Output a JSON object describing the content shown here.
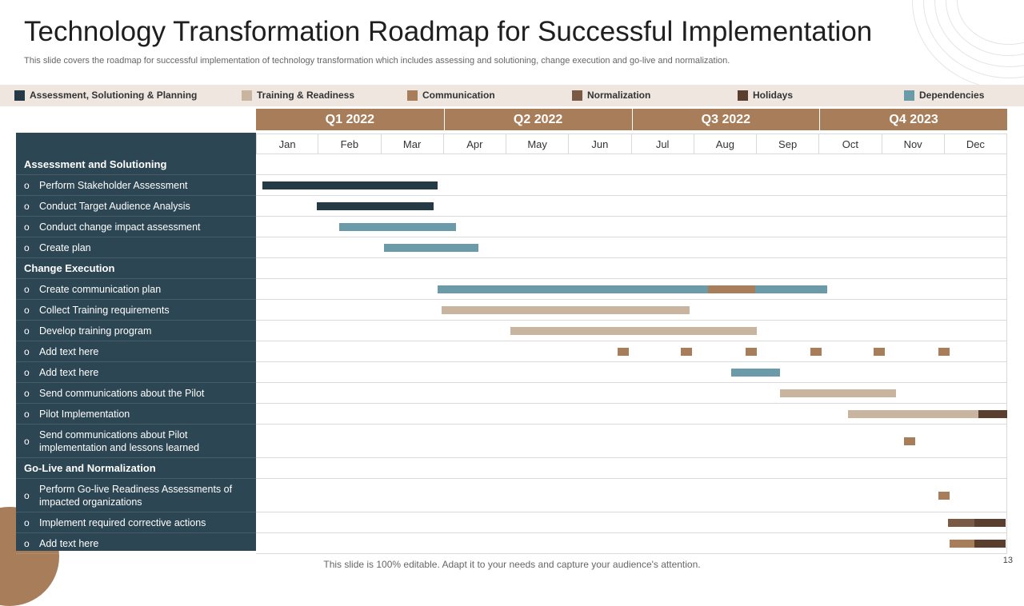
{
  "title": "Technology Transformation Roadmap for Successful Implementation",
  "subtitle": "This slide covers the roadmap for successful implementation of technology transformation which includes assessing and solutioning, change execution and go-live and normalization.",
  "colors": {
    "assessment": "#243a44",
    "training": "#c9b4a0",
    "communication": "#a87d5a",
    "normalization": "#7a5a44",
    "holidays": "#5b3f2e",
    "dependencies": "#6b9aa8"
  },
  "legend": [
    {
      "label": "Assessment, Solutioning  & Planning",
      "type": "assessment"
    },
    {
      "label": "Training & Readiness",
      "type": "training"
    },
    {
      "label": "Communication",
      "type": "communication"
    },
    {
      "label": "Normalization",
      "type": "normalization"
    },
    {
      "label": "Holidays",
      "type": "holidays"
    },
    {
      "label": "Dependencies",
      "type": "dependencies"
    }
  ],
  "quarters": [
    "Q1 2022",
    "Q2 2022",
    "Q3 2022",
    "Q4 2023"
  ],
  "months": [
    "Jan",
    "Feb",
    "Mar",
    "Apr",
    "May",
    "Jun",
    "Jul",
    "Aug",
    "Sep",
    "Oct",
    "Nov",
    "Dec"
  ],
  "rows": [
    {
      "kind": "section",
      "label": "Assessment and Solutioning",
      "bars": []
    },
    {
      "kind": "task",
      "label": "Perform Stakeholder Assessment",
      "bars": [
        {
          "start": 0.1,
          "end": 2.9,
          "type": "assessment"
        }
      ]
    },
    {
      "kind": "task",
      "label": "Conduct Target Audience Analysis",
      "bars": [
        {
          "start": 0.97,
          "end": 2.84,
          "type": "assessment"
        }
      ]
    },
    {
      "kind": "task",
      "label": "Conduct change impact assessment",
      "bars": [
        {
          "start": 1.33,
          "end": 3.2,
          "type": "dependencies"
        }
      ]
    },
    {
      "kind": "task",
      "label": "Create plan",
      "bars": [
        {
          "start": 2.04,
          "end": 3.55,
          "type": "dependencies"
        }
      ]
    },
    {
      "kind": "section",
      "label": "Change Execution",
      "bars": []
    },
    {
      "kind": "task",
      "label": "Create communication plan",
      "bars": [
        {
          "start": 2.9,
          "end": 7.22,
          "type": "dependencies"
        },
        {
          "start": 7.22,
          "end": 7.97,
          "type": "communication"
        },
        {
          "start": 7.97,
          "end": 9.12,
          "type": "dependencies"
        }
      ]
    },
    {
      "kind": "task",
      "label": "Collect Training  requirements",
      "bars": [
        {
          "start": 2.96,
          "end": 6.93,
          "type": "training"
        }
      ]
    },
    {
      "kind": "task",
      "label": "Develop training program",
      "bars": [
        {
          "start": 4.06,
          "end": 8.0,
          "type": "training"
        }
      ]
    },
    {
      "kind": "task",
      "label": "Add text here",
      "bars": [
        {
          "start": 5.77,
          "end": 5.95,
          "type": "communication"
        },
        {
          "start": 6.79,
          "end": 6.97,
          "type": "communication"
        },
        {
          "start": 7.82,
          "end": 8.0,
          "type": "communication"
        },
        {
          "start": 8.85,
          "end": 9.03,
          "type": "communication"
        },
        {
          "start": 9.87,
          "end": 10.05,
          "type": "communication"
        },
        {
          "start": 10.9,
          "end": 11.08,
          "type": "communication"
        }
      ]
    },
    {
      "kind": "task",
      "label": "Add text here",
      "bars": [
        {
          "start": 7.59,
          "end": 8.37,
          "type": "dependencies"
        }
      ]
    },
    {
      "kind": "task",
      "label": "Send communications about the Pilot",
      "bars": [
        {
          "start": 8.37,
          "end": 10.22,
          "type": "training"
        }
      ]
    },
    {
      "kind": "task",
      "label": "Pilot Implementation",
      "bars": [
        {
          "start": 9.46,
          "end": 11.54,
          "type": "training"
        },
        {
          "start": 11.54,
          "end": 12.0,
          "type": "holidays"
        }
      ]
    },
    {
      "kind": "task",
      "label": "Send communications about Pilot implementation  and lessons learned",
      "bars": [
        {
          "start": 10.35,
          "end": 10.53,
          "type": "communication"
        }
      ]
    },
    {
      "kind": "section",
      "label": "Go-Live and Normalization",
      "bars": []
    },
    {
      "kind": "task",
      "label": "Perform Go-live Readiness Assessments of impacted organizations",
      "bars": [
        {
          "start": 10.9,
          "end": 11.08,
          "type": "communication"
        }
      ]
    },
    {
      "kind": "task",
      "label": "Implement  required  corrective actions",
      "bars": [
        {
          "start": 11.05,
          "end": 11.48,
          "type": "normalization"
        },
        {
          "start": 11.48,
          "end": 11.97,
          "type": "holidays"
        }
      ]
    },
    {
      "kind": "task",
      "label": "Add text here",
      "bars": [
        {
          "start": 11.08,
          "end": 11.48,
          "type": "communication"
        },
        {
          "start": 11.48,
          "end": 11.97,
          "type": "holidays"
        }
      ]
    }
  ],
  "footer": "This slide is 100% editable. Adapt it to your needs and capture your audience's attention.",
  "page_number": "13"
}
